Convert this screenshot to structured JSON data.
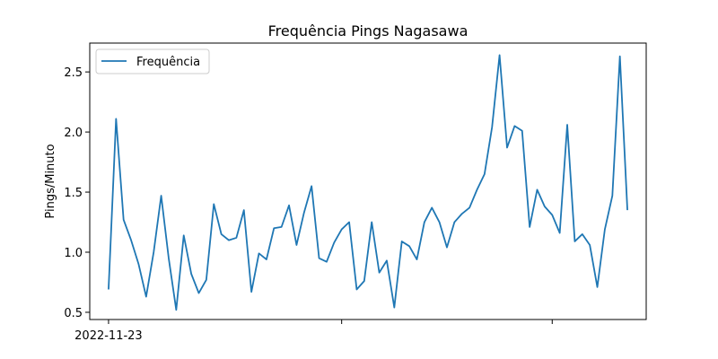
{
  "chart_data": {
    "type": "line",
    "title": "Frequência Pings Nagasawa",
    "xlabel": "",
    "ylabel": "Pings/Minuto",
    "x_tick_labels": [
      "2022-11-23",
      "",
      ""
    ],
    "y_ticks": [
      0.5,
      1.0,
      1.5,
      2.0,
      2.5
    ],
    "y_tick_labels": [
      "0.5",
      "1.0",
      "1.5",
      "2.0",
      "2.5"
    ],
    "ylim": [
      0.44,
      2.74
    ],
    "xlim": [
      -2.5,
      71.5
    ],
    "grid": false,
    "legend_position": "top-left",
    "line_color": "#1f77b4",
    "series": [
      {
        "name": "Frequência",
        "x": [
          0,
          1,
          2,
          3,
          4,
          5,
          6,
          7,
          8,
          9,
          10,
          11,
          12,
          13,
          14,
          15,
          16,
          17,
          18,
          19,
          20,
          21,
          22,
          23,
          24,
          25,
          26,
          27,
          28,
          29,
          30,
          31,
          32,
          33,
          34,
          35,
          36,
          37,
          38,
          39,
          40,
          41,
          42,
          43,
          44,
          45,
          46,
          47,
          48,
          49,
          50,
          51,
          52,
          53,
          54,
          55,
          56,
          57,
          58,
          59,
          60,
          61,
          62,
          63,
          64,
          65,
          66,
          67,
          68,
          69
        ],
        "values": [
          0.69,
          2.11,
          1.27,
          1.1,
          0.9,
          0.63,
          1.0,
          1.47,
          0.95,
          0.52,
          1.14,
          0.82,
          0.66,
          0.77,
          1.4,
          1.15,
          1.1,
          1.12,
          1.35,
          0.67,
          0.99,
          0.94,
          1.2,
          1.21,
          1.39,
          1.06,
          1.33,
          1.55,
          0.95,
          0.92,
          1.08,
          1.19,
          1.25,
          0.69,
          0.76,
          1.25,
          0.83,
          0.93,
          0.54,
          1.09,
          1.05,
          0.94,
          1.25,
          1.37,
          1.25,
          1.04,
          1.25,
          1.32,
          1.37,
          1.52,
          1.65,
          2.04,
          2.64,
          1.87,
          2.05,
          2.01,
          1.21,
          1.52,
          1.38,
          1.31,
          1.16,
          2.06,
          1.09,
          1.15,
          1.06,
          0.71,
          1.19,
          1.47,
          2.63,
          1.35
        ]
      }
    ],
    "x_tick_positions": [
      0,
      31,
      59
    ]
  }
}
